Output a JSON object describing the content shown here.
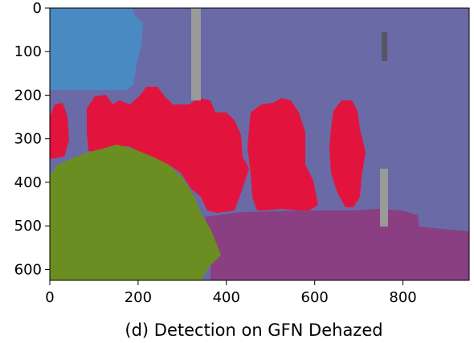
{
  "figure": {
    "caption": "(d) Detection on GFN Dehazed",
    "x_axis": {
      "range": [
        0,
        950
      ],
      "ticks": [
        0,
        200,
        400,
        600,
        800
      ],
      "labels": [
        "0",
        "200",
        "400",
        "600",
        "800"
      ]
    },
    "y_axis": {
      "range": [
        0,
        625
      ],
      "inverted": true,
      "ticks": [
        0,
        100,
        200,
        300,
        400,
        500,
        600
      ],
      "labels": [
        "0",
        "100",
        "200",
        "300",
        "400",
        "500",
        "600"
      ]
    }
  },
  "segmentation_colors": {
    "sky": "#4a8ac2",
    "background": "#6a6aa6",
    "people": "#e2143d",
    "vegetation": "#6b8e23",
    "ground": "#8a3f82",
    "pole": "#9a9a9a",
    "dark_object": "#555566",
    "frame": "#000000"
  }
}
